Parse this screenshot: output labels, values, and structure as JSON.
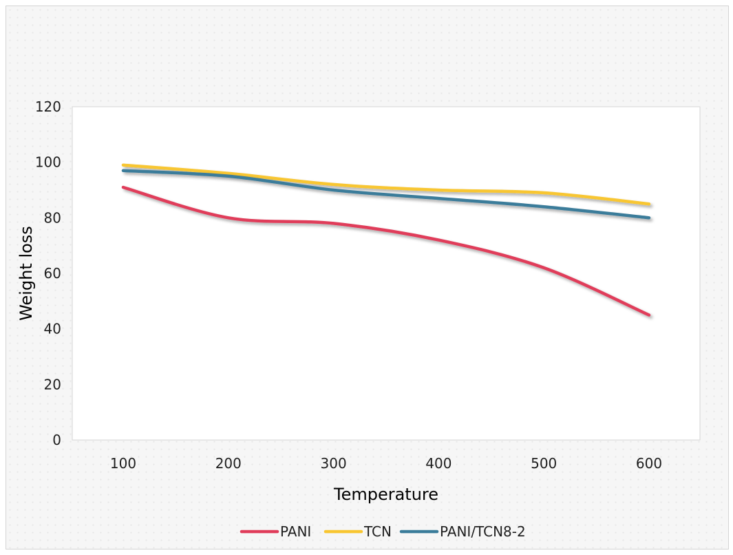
{
  "chart_data": {
    "type": "line",
    "title": "",
    "xlabel": "Temperature",
    "ylabel": "Weight loss",
    "x": [
      100,
      200,
      300,
      400,
      500,
      600
    ],
    "x_tick_labels": [
      "100",
      "200",
      "300",
      "400",
      "500",
      "600"
    ],
    "ylim": [
      0,
      120
    ],
    "y_ticks": [
      0,
      20,
      40,
      60,
      80,
      100,
      120
    ],
    "y_tick_labels": [
      "0",
      "20",
      "40",
      "60",
      "80",
      "100",
      "120"
    ],
    "grid": false,
    "smooth": true,
    "legend_position": "bottom",
    "series": [
      {
        "name": "PANI",
        "color": "#e03c5a",
        "values": [
          91,
          80,
          78,
          72,
          62,
          45
        ]
      },
      {
        "name": "TCN",
        "color": "#f8c631",
        "values": [
          99,
          96,
          92,
          90,
          89,
          85
        ]
      },
      {
        "name": "PANI/TCN8-2",
        "color": "#3a7c9a",
        "values": [
          97,
          95,
          90,
          87,
          84,
          80
        ]
      }
    ]
  }
}
